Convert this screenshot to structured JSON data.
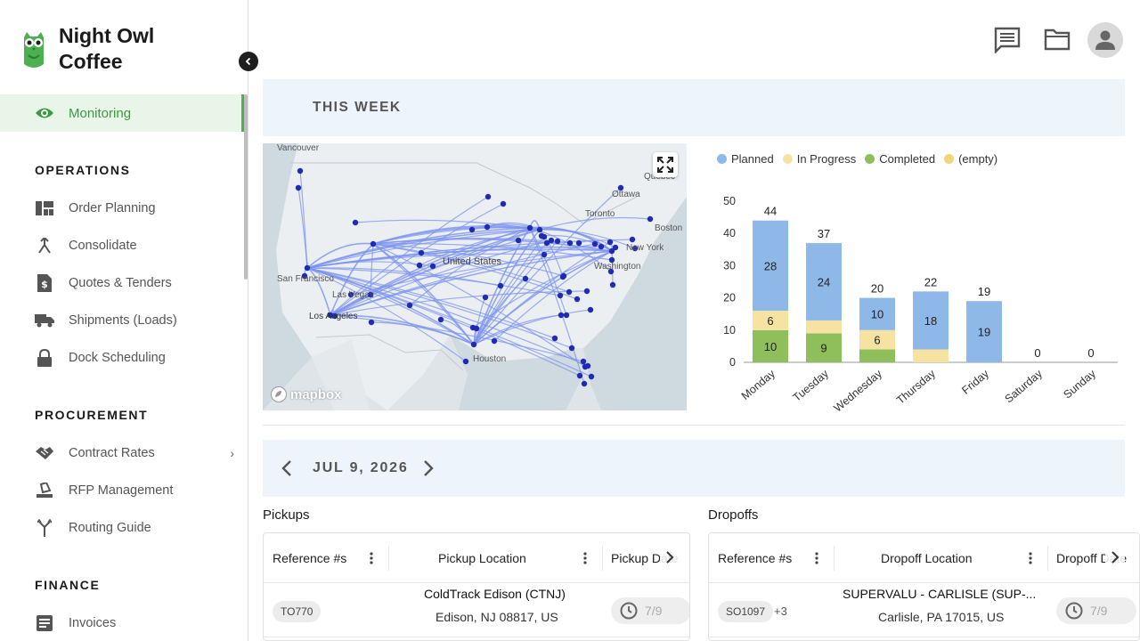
{
  "brand": {
    "name": "Night Owl Coffee"
  },
  "sidebar": {
    "active": {
      "label": "Monitoring",
      "icon": "eye-icon"
    },
    "sections": [
      {
        "title": "OPERATIONS",
        "items": [
          {
            "label": "Order Planning",
            "icon": "dashboard-icon"
          },
          {
            "label": "Consolidate",
            "icon": "merge-icon"
          },
          {
            "label": "Quotes & Tenders",
            "icon": "dollar-file-icon"
          },
          {
            "label": "Shipments (Loads)",
            "icon": "truck-icon"
          },
          {
            "label": "Dock Scheduling",
            "icon": "lock-icon"
          }
        ]
      },
      {
        "title": "PROCUREMENT",
        "items": [
          {
            "label": "Contract Rates",
            "icon": "handshake-icon"
          },
          {
            "label": "RFP Management",
            "icon": "stamp-icon"
          },
          {
            "label": "Routing Guide",
            "icon": "fork-icon"
          }
        ]
      },
      {
        "title": "FINANCE",
        "items": [
          {
            "label": "Invoices",
            "icon": "invoice-icon"
          }
        ]
      }
    ]
  },
  "week": {
    "title": "THIS WEEK",
    "map": {
      "labels": [
        "Vancouver",
        "Ottawa",
        "Québec",
        "Toronto",
        "Boston",
        "New York",
        "Washington",
        "United States",
        "San Francisco",
        "Las Vegas",
        "Los Angeles",
        "Houston"
      ],
      "logo": "mapbox"
    }
  },
  "chart_data": {
    "type": "bar",
    "stacked": true,
    "categories": [
      "Monday",
      "Tuesday",
      "Wednesday",
      "Thursday",
      "Friday",
      "Saturday",
      "Sunday"
    ],
    "series": [
      {
        "name": "Completed",
        "color": "#8fbf5a",
        "values": [
          10,
          9,
          4,
          0,
          0,
          0,
          0
        ],
        "labels": [
          "10",
          "9",
          "",
          "",
          "",
          "",
          ""
        ]
      },
      {
        "name": "In Progress",
        "color": "#f7e3a1",
        "values": [
          6,
          4,
          6,
          4,
          0,
          0,
          0
        ],
        "labels": [
          "6",
          "",
          "6",
          "",
          "",
          "",
          ""
        ]
      },
      {
        "name": "Planned",
        "color": "#8db8e8",
        "values": [
          28,
          24,
          10,
          18,
          19,
          0,
          0
        ],
        "labels": [
          "28",
          "24",
          "10",
          "18",
          "19",
          "",
          ""
        ]
      },
      {
        "name": "(empty)",
        "color": "#f2d479",
        "values": [
          0,
          0,
          0,
          0,
          0,
          0,
          0
        ]
      }
    ],
    "legend_order": [
      "Planned",
      "In Progress",
      "Completed",
      "(empty)"
    ],
    "totals": [
      44,
      37,
      20,
      22,
      19,
      0,
      0
    ],
    "y_ticks": [
      0,
      10,
      20,
      30,
      40,
      50
    ],
    "ylim": [
      0,
      50
    ],
    "legend_position": "top-left"
  },
  "date_bar": {
    "label": "JUL 9, 2026"
  },
  "pickups": {
    "title": "Pickups",
    "columns": [
      "Reference #s",
      "Pickup Location",
      "Pickup Date"
    ],
    "row": {
      "ref": "TO770",
      "loc_name": "ColdTrack Edison (CTNJ)",
      "loc_addr": "Edison, NJ 08817, US",
      "time": "7/9"
    }
  },
  "dropoffs": {
    "title": "Dropoffs",
    "columns": [
      "Reference #s",
      "Dropoff Location",
      "Dropoff Date"
    ],
    "row": {
      "ref": "SO1097",
      "extra": "+3",
      "loc_name": "SUPERVALU - CARLISLE (SUP-...",
      "loc_addr": "Carlisle, PA 17015, US",
      "time": "7/9"
    }
  }
}
